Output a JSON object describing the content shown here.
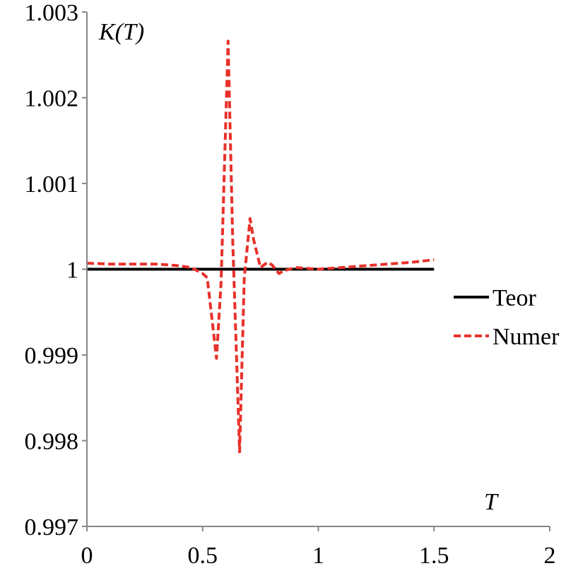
{
  "chart_data": {
    "type": "line",
    "ylabel": "K(T)",
    "xlabel": "T",
    "xlim": [
      0,
      2
    ],
    "ylim": [
      0.997,
      1.003
    ],
    "x_ticks": [
      "0",
      "0.5",
      "1",
      "1.5",
      "2"
    ],
    "y_ticks": [
      "0.997",
      "0.998",
      "0.999",
      "1",
      "1.001",
      "1.002",
      "1.003"
    ],
    "grid": false,
    "legend_position": "right",
    "series": [
      {
        "name": "Teor",
        "color": "#000000",
        "style": "solid",
        "x": [
          0,
          1.5
        ],
        "y": [
          1.0,
          1.0
        ]
      },
      {
        "name": "Numer",
        "color": "#e8312a",
        "style": "dashed",
        "x": [
          0,
          0.1,
          0.2,
          0.3,
          0.4,
          0.45,
          0.5,
          0.52,
          0.56,
          0.58,
          0.61,
          0.63,
          0.66,
          0.68,
          0.705,
          0.72,
          0.75,
          0.78,
          0.8,
          0.83,
          0.85,
          0.9,
          1.0,
          1.1,
          1.2,
          1.3,
          1.4,
          1.5
        ],
        "y": [
          1.00007,
          1.00006,
          1.00006,
          1.00006,
          1.00004,
          1.00002,
          0.99995,
          0.9999,
          0.99896,
          0.99985,
          1.00266,
          1.00035,
          0.99787,
          0.9999,
          1.00059,
          1.00035,
          1.00002,
          1.00008,
          1.00005,
          0.99995,
          0.99998,
          1.00002,
          1.0,
          1.00002,
          1.00004,
          1.00006,
          1.00008,
          1.00011
        ]
      }
    ]
  }
}
